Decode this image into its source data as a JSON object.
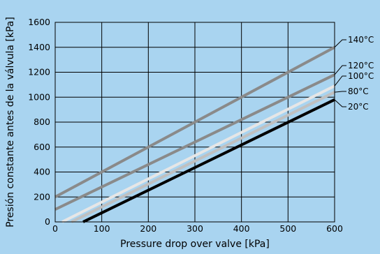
{
  "chart_data": {
    "type": "line",
    "title": "",
    "xlabel": "Pressure drop over valve [kPa]",
    "ylabel": "Presión constante antes de la válvula [kPa]",
    "xlim": [
      0,
      600
    ],
    "ylim": [
      0,
      1600
    ],
    "xticks": [
      "0",
      "100",
      "200",
      "300",
      "400",
      "500",
      "600"
    ],
    "yticks": [
      "0",
      "200",
      "400",
      "600",
      "800",
      "1000",
      "1200",
      "1400",
      "1600"
    ],
    "grid": true,
    "legend": "right, labels at line ends",
    "colors": {
      "background": "#a9d4f0",
      "plot_area": "#a9d4f0",
      "grid": "#000000",
      "140C": "#8a8a8a",
      "120C": "#8a8a8a",
      "100C": "#e6e6e6",
      "80C": "#c0c0c0",
      "20C": "#000000"
    },
    "series": [
      {
        "name": "140°C",
        "color": "#8a8a8a",
        "x": [
          0,
          600
        ],
        "y": [
          200,
          1400
        ]
      },
      {
        "name": "120°C",
        "color": "#8a8a8a",
        "x": [
          0,
          600
        ],
        "y": [
          100,
          1180
        ]
      },
      {
        "name": "100°C",
        "color": "#e6e6e6",
        "x": [
          15,
          600
        ],
        "y": [
          0,
          1090
        ]
      },
      {
        "name": "80°C",
        "color": "#c0c0c0",
        "x": [
          35,
          600
        ],
        "y": [
          0,
          1040
        ]
      },
      {
        "name": "20°C",
        "color": "#000000",
        "x": [
          60,
          600
        ],
        "y": [
          0,
          980
        ]
      }
    ]
  }
}
